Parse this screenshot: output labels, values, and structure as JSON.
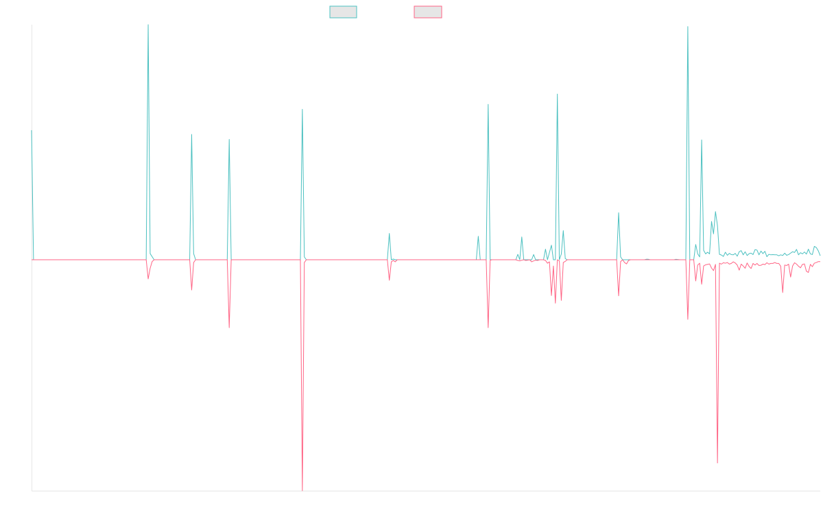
{
  "chart_data": {
    "type": "line",
    "title": "",
    "xlabel": "",
    "ylabel": "",
    "xlim": [
      0,
      399
    ],
    "ylim": [
      -1,
      1
    ],
    "grid": false,
    "legend_position": "top-center",
    "series": [
      {
        "color": "#4bc0c0",
        "points": [
          [
            0,
            0.551
          ],
          [
            1,
            0
          ],
          [
            58,
            0
          ],
          [
            59,
            1.0
          ],
          [
            60,
            0.026
          ],
          [
            62,
            0
          ],
          [
            80,
            0
          ],
          [
            81,
            0.533
          ],
          [
            82,
            0.026
          ],
          [
            83,
            0
          ],
          [
            99,
            0
          ],
          [
            100,
            0.512
          ],
          [
            101,
            0
          ],
          [
            136,
            0
          ],
          [
            137,
            0.64
          ],
          [
            138,
            0.012
          ],
          [
            139,
            0
          ],
          [
            180,
            0
          ],
          [
            181,
            0.112
          ],
          [
            182,
            0
          ],
          [
            183,
            0.003
          ],
          [
            184,
            0
          ],
          [
            225,
            0
          ],
          [
            226,
            0.1
          ],
          [
            227,
            0
          ],
          [
            230,
            0
          ],
          [
            231,
            0.661
          ],
          [
            232,
            0
          ],
          [
            245,
            0
          ],
          [
            246,
            0.023
          ],
          [
            247,
            0
          ],
          [
            248,
            0.097
          ],
          [
            249,
            0
          ],
          [
            253,
            0
          ],
          [
            254,
            0.022
          ],
          [
            255,
            0
          ],
          [
            259,
            0
          ],
          [
            260,
            0.045
          ],
          [
            261,
            0
          ],
          [
            263,
            0.062
          ],
          [
            264,
            0
          ],
          [
            265,
            0.0
          ],
          [
            266,
            0.705
          ],
          [
            267,
            0
          ],
          [
            268,
            0.024
          ],
          [
            269,
            0.124
          ],
          [
            270,
            0.005
          ],
          [
            271,
            0
          ],
          [
            296,
            0
          ],
          [
            297,
            0.2
          ],
          [
            298,
            0.012
          ],
          [
            299,
            0
          ],
          [
            310,
            0
          ],
          [
            311,
            0.002
          ],
          [
            312,
            0.002
          ],
          [
            313,
            0
          ],
          [
            325,
            0
          ],
          [
            326,
            0.002
          ],
          [
            328,
            0
          ],
          [
            331,
            0
          ],
          [
            332,
            0.992
          ],
          [
            333,
            0
          ],
          [
            335,
            0
          ],
          [
            336,
            0.065
          ],
          [
            337,
            0.025
          ],
          [
            338,
            0.012
          ],
          [
            339,
            0.51
          ],
          [
            340,
            0.04
          ],
          [
            341,
            0.025
          ],
          [
            342,
            0.032
          ],
          [
            343,
            0.025
          ],
          [
            344,
            0.163
          ],
          [
            345,
            0.11
          ],
          [
            346,
            0.205
          ],
          [
            347,
            0.145
          ],
          [
            348,
            0.023
          ],
          [
            349,
            0.02
          ],
          [
            350,
            0.014
          ],
          [
            351,
            0.032
          ],
          [
            352,
            0.019
          ],
          [
            353,
            0.027
          ],
          [
            354,
            0.022
          ],
          [
            355,
            0.021
          ],
          [
            356,
            0.027
          ],
          [
            357,
            0.015
          ],
          [
            358,
            0.034
          ],
          [
            359,
            0.039
          ],
          [
            360,
            0.021
          ],
          [
            361,
            0.034
          ],
          [
            362,
            0.018
          ],
          [
            363,
            0.026
          ],
          [
            364,
            0.028
          ],
          [
            365,
            0.022
          ],
          [
            366,
            0.043
          ],
          [
            367,
            0.041
          ],
          [
            368,
            0.021
          ],
          [
            369,
            0.037
          ],
          [
            370,
            0.026
          ],
          [
            371,
            0.036
          ],
          [
            372,
            0.013
          ],
          [
            373,
            0.023
          ],
          [
            374,
            0.021
          ],
          [
            375,
            0.022
          ],
          [
            376,
            0.021
          ],
          [
            377,
            0.021
          ],
          [
            378,
            0.017
          ],
          [
            379,
            0.021
          ],
          [
            380,
            0.018
          ],
          [
            381,
            0.028
          ],
          [
            382,
            0.019
          ],
          [
            383,
            0.022
          ],
          [
            384,
            0.028
          ],
          [
            385,
            0.034
          ],
          [
            386,
            0.031
          ],
          [
            387,
            0.044
          ],
          [
            388,
            0.021
          ],
          [
            389,
            0.03
          ],
          [
            390,
            0.025
          ],
          [
            391,
            0.033
          ],
          [
            392,
            0.024
          ],
          [
            393,
            0.045
          ],
          [
            394,
            0.025
          ],
          [
            395,
            0.022
          ],
          [
            396,
            0.057
          ],
          [
            397,
            0.052
          ],
          [
            398,
            0.038
          ],
          [
            399,
            0.017
          ]
        ]
      },
      {
        "color": "#ff6384",
        "points": [
          [
            0,
            0
          ],
          [
            58,
            0
          ],
          [
            59,
            -0.083
          ],
          [
            60,
            -0.037
          ],
          [
            61,
            -0.008
          ],
          [
            62,
            0
          ],
          [
            80,
            0
          ],
          [
            81,
            -0.131
          ],
          [
            82,
            -0.012
          ],
          [
            83,
            0
          ],
          [
            99,
            0
          ],
          [
            100,
            -0.294
          ],
          [
            101,
            0
          ],
          [
            136,
            0
          ],
          [
            137,
            -1.0
          ],
          [
            138,
            -0.012
          ],
          [
            139,
            0
          ],
          [
            180,
            0
          ],
          [
            181,
            -0.089
          ],
          [
            182,
            -0.009
          ],
          [
            183,
            -0.003
          ],
          [
            184,
            -0.009
          ],
          [
            185,
            0
          ],
          [
            230,
            0
          ],
          [
            231,
            -0.294
          ],
          [
            232,
            -0.002
          ],
          [
            233,
            0
          ],
          [
            245,
            0
          ],
          [
            246,
            -0.003
          ],
          [
            247,
            -0.005
          ],
          [
            248,
            -0.002
          ],
          [
            249,
            0
          ],
          [
            250,
            -0.003
          ],
          [
            251,
            -0.002
          ],
          [
            252,
            0
          ],
          [
            253,
            -0.009
          ],
          [
            254,
            -0.005
          ],
          [
            255,
            -0.002
          ],
          [
            256,
            -0.003
          ],
          [
            257,
            0
          ],
          [
            259,
            0
          ],
          [
            260,
            -0.003
          ],
          [
            261,
            -0.015
          ],
          [
            262,
            -0.009
          ],
          [
            263,
            -0.155
          ],
          [
            264,
            -0.027
          ],
          [
            265,
            -0.188
          ],
          [
            266,
            0
          ],
          [
            267,
            -0.005
          ],
          [
            268,
            -0.176
          ],
          [
            269,
            -0.012
          ],
          [
            270,
            -0.007
          ],
          [
            271,
            0
          ],
          [
            296,
            0
          ],
          [
            297,
            -0.156
          ],
          [
            298,
            -0.008
          ],
          [
            299,
            0
          ],
          [
            300,
            -0.012
          ],
          [
            301,
            -0.018
          ],
          [
            302,
            -0.003
          ],
          [
            303,
            0
          ],
          [
            331,
            0
          ],
          [
            332,
            -0.258
          ],
          [
            333,
            0
          ],
          [
            335,
            0
          ],
          [
            336,
            -0.092
          ],
          [
            337,
            -0.023
          ],
          [
            338,
            -0.015
          ],
          [
            339,
            -0.106
          ],
          [
            340,
            -0.027
          ],
          [
            341,
            -0.022
          ],
          [
            342,
            -0.02
          ],
          [
            343,
            -0.018
          ],
          [
            344,
            -0.036
          ],
          [
            345,
            -0.047
          ],
          [
            346,
            -0.02
          ],
          [
            347,
            -0.88
          ],
          [
            348,
            -0.015
          ],
          [
            349,
            -0.019
          ],
          [
            350,
            -0.013
          ],
          [
            351,
            -0.015
          ],
          [
            352,
            -0.012
          ],
          [
            353,
            -0.019
          ],
          [
            354,
            -0.016
          ],
          [
            355,
            -0.009
          ],
          [
            356,
            -0.014
          ],
          [
            357,
            -0.023
          ],
          [
            358,
            -0.045
          ],
          [
            359,
            -0.019
          ],
          [
            360,
            -0.027
          ],
          [
            361,
            -0.037
          ],
          [
            362,
            -0.014
          ],
          [
            363,
            -0.029
          ],
          [
            364,
            -0.038
          ],
          [
            365,
            -0.016
          ],
          [
            366,
            -0.023
          ],
          [
            367,
            -0.016
          ],
          [
            368,
            -0.025
          ],
          [
            369,
            -0.024
          ],
          [
            370,
            -0.019
          ],
          [
            371,
            -0.021
          ],
          [
            372,
            -0.013
          ],
          [
            373,
            -0.019
          ],
          [
            374,
            -0.016
          ],
          [
            375,
            -0.016
          ],
          [
            376,
            -0.012
          ],
          [
            377,
            -0.016
          ],
          [
            378,
            -0.016
          ],
          [
            379,
            -0.028
          ],
          [
            380,
            -0.142
          ],
          [
            381,
            -0.023
          ],
          [
            382,
            -0.025
          ],
          [
            383,
            -0.019
          ],
          [
            384,
            -0.075
          ],
          [
            385,
            -0.027
          ],
          [
            386,
            -0.013
          ],
          [
            387,
            -0.019
          ],
          [
            388,
            -0.028
          ],
          [
            389,
            -0.035
          ],
          [
            390,
            -0.02
          ],
          [
            391,
            -0.018
          ],
          [
            392,
            -0.05
          ],
          [
            393,
            -0.055
          ],
          [
            394,
            -0.02
          ],
          [
            395,
            -0.03
          ],
          [
            396,
            -0.015
          ],
          [
            397,
            -0.012
          ],
          [
            398,
            -0.008
          ],
          [
            399,
            -0.008
          ]
        ]
      }
    ]
  }
}
